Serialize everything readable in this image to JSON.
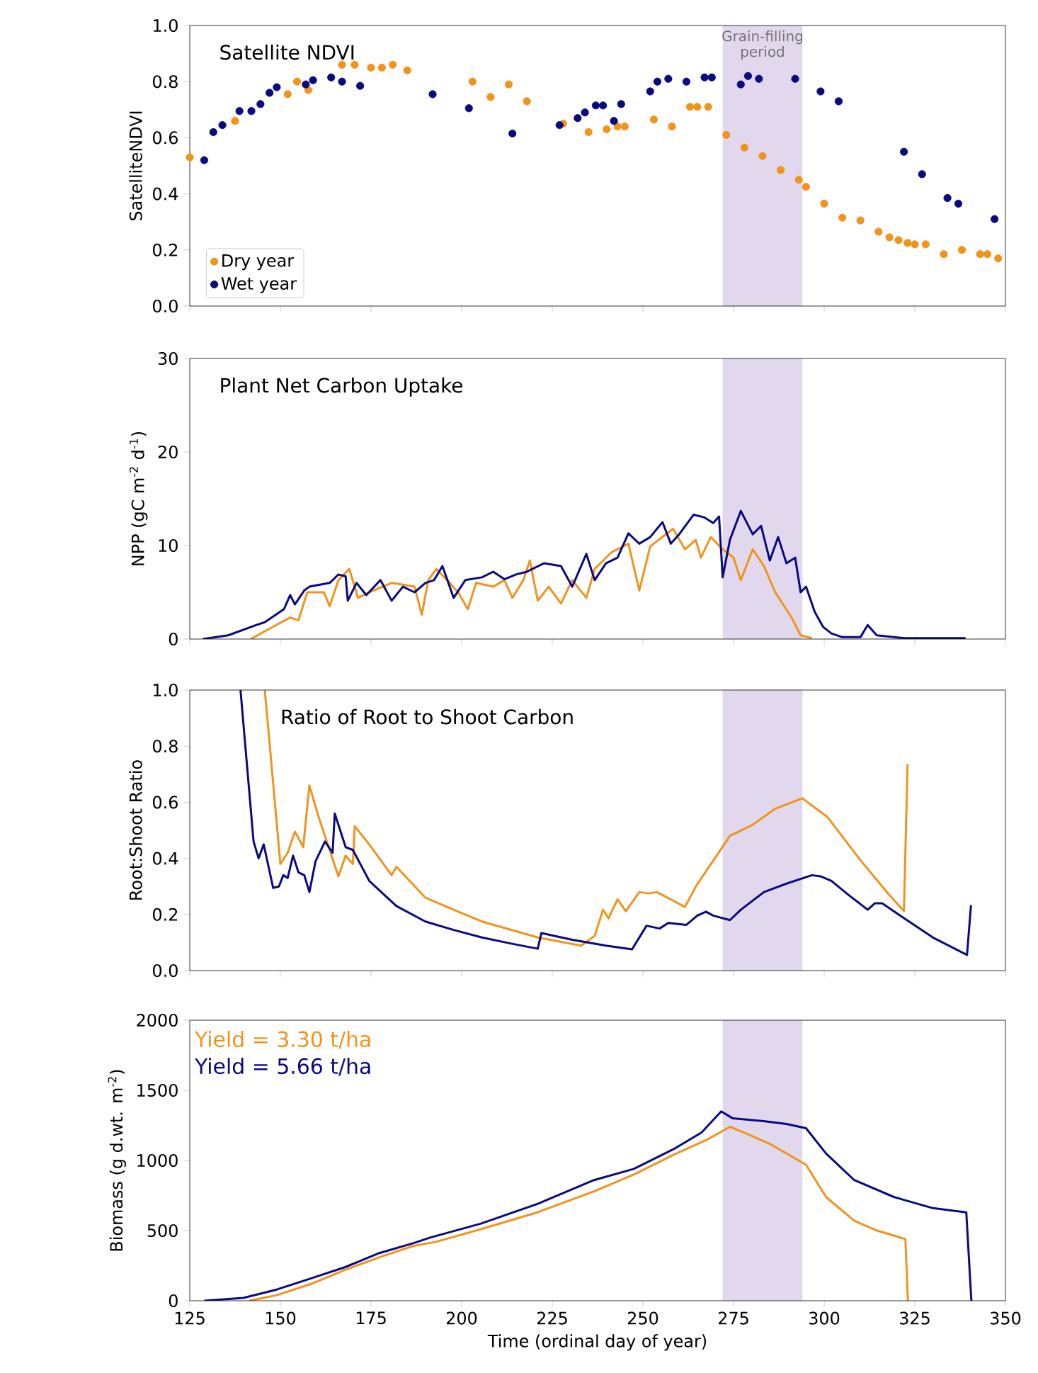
{
  "chart_data": [
    {
      "type": "scatter",
      "title": "Satellite NDVI",
      "ylabel": "SatelliteNDVI",
      "xlim": [
        125,
        350
      ],
      "ylim": [
        0,
        1
      ],
      "marker": "circle",
      "legend": "bottom left",
      "tick_labels": "y",
      "xticks": [
        {
          "value": 125,
          "label": null
        },
        {
          "value": 150,
          "label": null
        },
        {
          "value": 175,
          "label": null
        },
        {
          "value": 200,
          "label": null
        },
        {
          "value": 225,
          "label": null
        },
        {
          "value": 250,
          "label": null
        },
        {
          "value": 275,
          "label": null
        },
        {
          "value": 300,
          "label": null
        },
        {
          "value": 325,
          "label": null
        },
        {
          "value": 350,
          "label": null
        }
      ],
      "yticks": [
        {
          "value": 0,
          "label": "0.0"
        },
        {
          "value": 0.2,
          "label": "0.2"
        },
        {
          "value": 0.4,
          "label": "0.4"
        },
        {
          "value": 0.6,
          "label": "0.6"
        },
        {
          "value": 0.8,
          "label": "0.8"
        },
        {
          "value": 1,
          "label": "1.0"
        }
      ],
      "bands": [
        {
          "axis": "x",
          "from": 272,
          "to": 294,
          "label": "Grain-filling period",
          "color": "#e2d8ee"
        }
      ],
      "series": [
        {
          "name": "Dry year",
          "color": "#f0941e",
          "x": [
            125,
            137.5,
            144.5,
            152,
            154.6,
            157.7,
            167,
            170.5,
            175,
            178,
            181,
            185,
            203,
            208,
            213,
            218,
            228,
            235,
            240,
            243,
            245,
            253,
            258,
            263,
            265,
            268,
            273,
            278,
            283,
            288,
            293,
            295,
            300,
            305,
            310,
            315,
            318,
            320.5,
            323,
            325,
            328,
            333,
            338,
            343,
            345,
            348
          ],
          "values": [
            0.53,
            0.66,
            null,
            0.755,
            0.8,
            0.77,
            0.86,
            0.86,
            0.85,
            0.85,
            0.86,
            0.84,
            0.8,
            0.745,
            0.79,
            0.73,
            0.65,
            0.62,
            0.63,
            0.64,
            0.64,
            0.665,
            0.64,
            0.71,
            0.71,
            0.71,
            0.61,
            0.565,
            0.535,
            0.485,
            0.45,
            0.425,
            0.365,
            0.315,
            0.305,
            0.265,
            0.245,
            0.235,
            0.225,
            0.22,
            0.22,
            0.185,
            0.2,
            0.185,
            0.185,
            0.17
          ]
        },
        {
          "name": "Wet year",
          "color": "#0a0a80",
          "x": [
            129,
            131.5,
            134,
            138.7,
            142,
            144.5,
            147,
            149,
            157,
            159,
            164,
            167,
            172,
            192,
            202,
            214,
            227,
            232,
            234,
            237,
            239,
            242,
            244,
            252,
            254,
            257,
            262,
            267,
            269,
            277,
            279,
            282,
            292,
            299,
            304,
            322,
            327,
            334,
            337,
            347
          ],
          "values": [
            0.52,
            0.62,
            0.645,
            0.695,
            0.695,
            0.72,
            0.76,
            0.78,
            0.79,
            0.805,
            0.815,
            0.8,
            0.785,
            0.755,
            0.705,
            0.615,
            0.645,
            0.67,
            0.69,
            0.715,
            0.715,
            0.66,
            0.72,
            0.765,
            0.8,
            0.81,
            0.8,
            0.815,
            0.815,
            0.79,
            0.82,
            0.81,
            0.81,
            0.765,
            0.73,
            0.55,
            0.47,
            0.385,
            0.365,
            0.31
          ]
        }
      ]
    },
    {
      "type": "line",
      "title": "Plant Net Carbon Uptake",
      "ylabel": "NPP (gC m$^{-2}$ d$^{-1}$)",
      "xlim": [
        125,
        350
      ],
      "ylim": [
        0,
        30
      ],
      "line_style": "solid",
      "tick_labels": "y",
      "xticks": [
        {
          "value": 125,
          "label": null
        },
        {
          "value": 150,
          "label": null
        },
        {
          "value": 175,
          "label": null
        },
        {
          "value": 200,
          "label": null
        },
        {
          "value": 225,
          "label": null
        },
        {
          "value": 250,
          "label": null
        },
        {
          "value": 275,
          "label": null
        },
        {
          "value": 300,
          "label": null
        },
        {
          "value": 325,
          "label": null
        },
        {
          "value": 350,
          "label": null
        }
      ],
      "yticks": [
        0,
        10,
        20,
        30
      ],
      "bands": [
        {
          "axis": "x",
          "from": 272,
          "to": 294,
          "color": "#e2d8ee"
        }
      ],
      "series": [
        {
          "color": "#f0941e",
          "x": [
            141.8,
            146.5,
            152.7,
            155,
            157.4,
            162,
            163.6,
            166,
            169,
            171.4,
            174.5,
            180.7,
            187,
            189,
            190.8,
            193,
            196,
            199,
            201.7,
            204,
            208.7,
            211.8,
            214,
            217,
            218.8,
            221,
            224,
            227.4,
            230.5,
            234.4,
            236.7,
            241.4,
            246,
            249,
            252,
            258.3,
            261.6,
            264.6,
            266,
            268.7,
            272,
            275,
            277,
            280.3,
            283.4,
            286.5,
            289,
            291,
            293.5,
            296.6
          ],
          "values": [
            0,
            1.0,
            2.3,
            2.0,
            5.0,
            5.0,
            3.5,
            6.3,
            7.5,
            4.4,
            5.0,
            6.0,
            5.6,
            2.6,
            6.3,
            7.5,
            6.3,
            5.0,
            3.2,
            6.0,
            5.6,
            6.3,
            4.4,
            6.3,
            8.4,
            4.1,
            5.6,
            3.8,
            6.3,
            4.4,
            7.5,
            9.3,
            10.2,
            5.2,
            9.9,
            11.8,
            9.6,
            10.6,
            8.7,
            10.9,
            9.6,
            8.7,
            6.3,
            9.6,
            7.8,
            5.0,
            3.5,
            2.3,
            0.4,
            0.1
          ]
        },
        {
          "color": "#0a0a80",
          "x": [
            128.6,
            135.6,
            143.4,
            145.7,
            151,
            152.7,
            154,
            156.6,
            158,
            163.6,
            166,
            168,
            168.6,
            171,
            173.7,
            177.6,
            180.7,
            183.8,
            187,
            190,
            192.4,
            194.7,
            197.8,
            201,
            205.6,
            208.7,
            211.8,
            215,
            218,
            222.7,
            227.4,
            230.5,
            234.4,
            236.7,
            239.8,
            243,
            246,
            249,
            252,
            255.4,
            257.7,
            260,
            264,
            267,
            269.4,
            271,
            272,
            274,
            277,
            280.3,
            282.6,
            285,
            287.3,
            289.6,
            292,
            293.5,
            295,
            297.4,
            299.7,
            302,
            305,
            310,
            312,
            314.5,
            322,
            339
          ],
          "values": [
            0,
            0.4,
            1.5,
            1.8,
            3.2,
            4.7,
            3.7,
            5.2,
            5.6,
            6.0,
            6.9,
            6.7,
            4.1,
            6.0,
            4.7,
            6.3,
            4.1,
            5.6,
            5.0,
            6.0,
            6.3,
            7.8,
            4.4,
            6.3,
            6.6,
            7.2,
            6.4,
            6.9,
            7.2,
            8.1,
            7.8,
            5.6,
            9.1,
            6.3,
            8.1,
            8.7,
            11.3,
            10.2,
            10.9,
            12.5,
            10.2,
            11.2,
            13.3,
            13.0,
            12.4,
            13.1,
            6.6,
            10.6,
            13.7,
            11.2,
            12.1,
            8.4,
            10.9,
            8.1,
            8.7,
            5.0,
            5.6,
            2.9,
            1.3,
            0.6,
            0.2,
            0.2,
            1.5,
            0.4,
            0.1,
            0.1
          ]
        }
      ]
    },
    {
      "type": "line",
      "title": "Ratio of Root to Shoot Carbon",
      "ylabel": "Root:Shoot Ratio",
      "xlim": [
        125,
        350
      ],
      "ylim": [
        0,
        1
      ],
      "line_style": "solid",
      "tick_labels": "y",
      "xticks": [
        {
          "value": 125,
          "label": null
        },
        {
          "value": 150,
          "label": null
        },
        {
          "value": 175,
          "label": null
        },
        {
          "value": 200,
          "label": null
        },
        {
          "value": 225,
          "label": null
        },
        {
          "value": 250,
          "label": null
        },
        {
          "value": 275,
          "label": null
        },
        {
          "value": 300,
          "label": null
        },
        {
          "value": 325,
          "label": null
        },
        {
          "value": 350,
          "label": null
        }
      ],
      "yticks": [
        {
          "value": 0,
          "label": "0.0"
        },
        {
          "value": 0.2,
          "label": "0.2"
        },
        {
          "value": 0.4,
          "label": "0.4"
        },
        {
          "value": 0.6,
          "label": "0.6"
        },
        {
          "value": 0.8,
          "label": "0.8"
        },
        {
          "value": 1,
          "label": "1.0"
        }
      ],
      "bands": [
        {
          "axis": "x",
          "from": 272,
          "to": 294,
          "color": "#e2d8ee"
        }
      ],
      "series": [
        {
          "color": "#f0941e",
          "x": [
            145.7,
            150,
            152,
            154,
            156.3,
            158,
            160.5,
            166,
            168,
            170,
            170.5,
            174.5,
            180.7,
            182,
            190,
            197.8,
            205.6,
            221,
            233,
            236.7,
            239,
            240.5,
            243,
            245.3,
            249,
            251.5,
            253.8,
            261.6,
            264.6,
            274,
            280.3,
            286.5,
            294,
            301,
            309.6,
            317.4,
            322,
            323
          ],
          "values": [
            1.0,
            0.38,
            0.42,
            0.495,
            0.44,
            0.66,
            0.55,
            0.336,
            0.41,
            0.38,
            0.515,
            0.45,
            0.34,
            0.37,
            0.26,
            0.217,
            0.175,
            0.118,
            0.089,
            0.124,
            0.217,
            0.186,
            0.254,
            0.212,
            0.28,
            0.275,
            0.28,
            0.227,
            0.3,
            0.48,
            0.52,
            0.577,
            0.614,
            0.546,
            0.4,
            0.278,
            0.212,
            0.736
          ]
        },
        {
          "color": "#0a0a80",
          "x": [
            139,
            142.6,
            144,
            145.4,
            148,
            149.6,
            150.8,
            152,
            153.5,
            155,
            156.6,
            158,
            159.7,
            162.3,
            164.4,
            165,
            168,
            170,
            174.5,
            182,
            190,
            197.8,
            205.6,
            213.4,
            221,
            222,
            230.5,
            239.8,
            247,
            251,
            254.6,
            257,
            262,
            265,
            267.4,
            269.4,
            274,
            277,
            283.4,
            289.6,
            296.6,
            299,
            302,
            306.7,
            312,
            314,
            316,
            321,
            330,
            339.4,
            340.5
          ],
          "values": [
            1.0,
            0.46,
            0.4,
            0.45,
            0.295,
            0.3,
            0.34,
            0.33,
            0.41,
            0.35,
            0.34,
            0.28,
            0.39,
            0.46,
            0.42,
            0.56,
            0.44,
            0.43,
            0.32,
            0.23,
            0.175,
            0.145,
            0.118,
            0.097,
            0.078,
            0.134,
            0.11,
            0.089,
            0.076,
            0.16,
            0.15,
            0.17,
            0.163,
            0.196,
            0.21,
            0.196,
            0.18,
            0.217,
            0.28,
            0.31,
            0.34,
            0.336,
            0.32,
            0.27,
            0.217,
            0.24,
            0.24,
            0.196,
            0.118,
            0.056,
            0.233
          ]
        }
      ]
    },
    {
      "type": "line",
      "xlabel": "Time (ordinal day of year)",
      "ylabel": "Biomass (g d.wt. m$^{-2}$)",
      "xlim": [
        125,
        350
      ],
      "ylim": [
        0,
        2000
      ],
      "line_style": "solid",
      "annotations": [
        "Yield = 3.30 t/ha",
        "Yield = 5.66 t/ha"
      ],
      "xticks": [
        125,
        150,
        175,
        200,
        225,
        250,
        275,
        300,
        325,
        350
      ],
      "yticks": [
        0,
        500,
        1000,
        1500,
        2000
      ],
      "bands": [
        {
          "axis": "x",
          "from": 272,
          "to": 294,
          "color": "#e2d8ee"
        }
      ],
      "series": [
        {
          "color": "#f0941e",
          "x": [
            141.4,
            149,
            158.5,
            167.9,
            177.3,
            186.6,
            192.9,
            205.3,
            220.9,
            236.5,
            247.5,
            258.4,
            267.8,
            274,
            278.7,
            284.9,
            295,
            300.5,
            308.3,
            314.6,
            322.4,
            323.1
          ],
          "values": [
            0,
            40,
            120,
            220,
            310,
            390,
            420,
            510,
            630,
            780,
            900,
            1040,
            1150,
            1240,
            1190,
            1120,
            970,
            740,
            570,
            500,
            440,
            0
          ]
        },
        {
          "color": "#0a0a80",
          "x": [
            129,
            139.8,
            149,
            158.5,
            167.9,
            177.3,
            186.6,
            191.3,
            205.3,
            220.9,
            236.5,
            247.5,
            258.4,
            266.2,
            271.6,
            274.8,
            283.3,
            289.6,
            295,
            300.5,
            308.3,
            319.2,
            330,
            339.2,
            340.6
          ],
          "values": [
            0,
            20,
            80,
            160,
            240,
            340,
            410,
            450,
            550,
            690,
            860,
            940,
            1080,
            1200,
            1350,
            1300,
            1280,
            1260,
            1230,
            1050,
            860,
            740,
            660,
            630,
            0
          ]
        }
      ]
    }
  ]
}
